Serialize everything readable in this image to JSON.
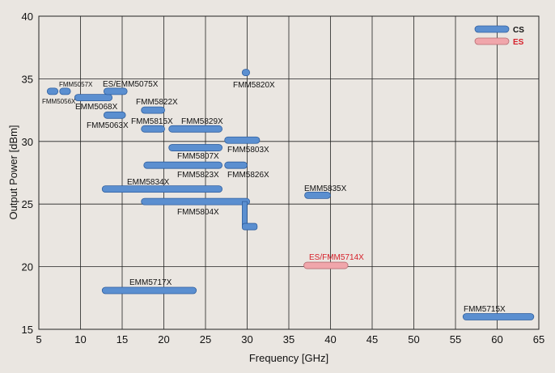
{
  "chart_data": {
    "type": "range-bar",
    "xlabel": "Frequency  [GHz]",
    "ylabel": "Output Power  [dBm]",
    "xlim": [
      5,
      65
    ],
    "ylim": [
      15,
      40
    ],
    "x_ticks": [
      5,
      10,
      15,
      20,
      25,
      30,
      35,
      40,
      45,
      50,
      55,
      60,
      65
    ],
    "y_ticks": [
      15,
      20,
      25,
      30,
      35,
      40
    ],
    "grid": true,
    "legend_position": "top-right",
    "colors": {
      "cs": "#5b8fd0",
      "cs_stroke": "#2f5f9f",
      "es": "#f0a6ab",
      "es_stroke": "#b56c72",
      "es_text": "#d6202a",
      "grid": "#222222",
      "background": "#eae6e1"
    },
    "legend": [
      {
        "key": "cs",
        "label": "CS"
      },
      {
        "key": "es",
        "label": "ES"
      }
    ],
    "items": [
      {
        "label": "FMM5056X",
        "x0": 6.0,
        "x1": 7.3,
        "y": 34.0,
        "status": "cs",
        "small": true
      },
      {
        "label": "FMM5057X",
        "x0": 7.5,
        "x1": 8.8,
        "y": 34.0,
        "status": "cs",
        "small": true
      },
      {
        "label": "EMM5068X",
        "x0": 9.3,
        "x1": 13.8,
        "y": 33.5,
        "status": "cs"
      },
      {
        "label": "ES/EMM5075X",
        "x0": 12.8,
        "x1": 15.6,
        "y": 34.0,
        "status": "cs"
      },
      {
        "label": "FMM5063X",
        "x0": 12.8,
        "x1": 15.4,
        "y": 32.1,
        "status": "cs"
      },
      {
        "label": "FMM5822X",
        "x0": 17.3,
        "x1": 20.1,
        "y": 32.5,
        "status": "cs"
      },
      {
        "label": "FMM5815X",
        "x0": 17.3,
        "x1": 20.1,
        "y": 31.0,
        "status": "cs"
      },
      {
        "label": "FMM5829X",
        "x0": 20.6,
        "x1": 27.0,
        "y": 31.0,
        "status": "cs"
      },
      {
        "label": "FMM5820X",
        "x0": 29.4,
        "x1": 30.3,
        "y": 35.5,
        "status": "cs"
      },
      {
        "label": "FMM5807X",
        "x0": 20.6,
        "x1": 27.0,
        "y": 29.5,
        "status": "cs"
      },
      {
        "label": "FMM5803X",
        "x0": 27.3,
        "x1": 31.5,
        "y": 30.1,
        "status": "cs"
      },
      {
        "label": "FMM5823X",
        "x0": 17.6,
        "x1": 27.0,
        "y": 28.1,
        "status": "cs"
      },
      {
        "label": "FMM5826X",
        "x0": 27.3,
        "x1": 30.0,
        "y": 28.1,
        "status": "cs"
      },
      {
        "label": "EMM5834X",
        "x0": 12.6,
        "x1": 27.0,
        "y": 26.2,
        "status": "cs"
      },
      {
        "label": "EMM5835X",
        "x0": 36.9,
        "x1": 40.0,
        "y": 25.7,
        "status": "cs"
      },
      {
        "label": "FMM5804X",
        "x0": 17.3,
        "x1": 30.3,
        "y": 25.2,
        "status": "cs"
      },
      {
        "label": "ES/FMM5714X",
        "x0": 36.8,
        "x1": 42.1,
        "y": 20.1,
        "status": "es"
      },
      {
        "label": "EMM5717X",
        "x0": 12.6,
        "x1": 23.9,
        "y": 18.1,
        "status": "cs"
      },
      {
        "label": "FMM5715X",
        "x0": 55.9,
        "x1": 64.4,
        "y": 16.0,
        "status": "cs"
      }
    ]
  }
}
